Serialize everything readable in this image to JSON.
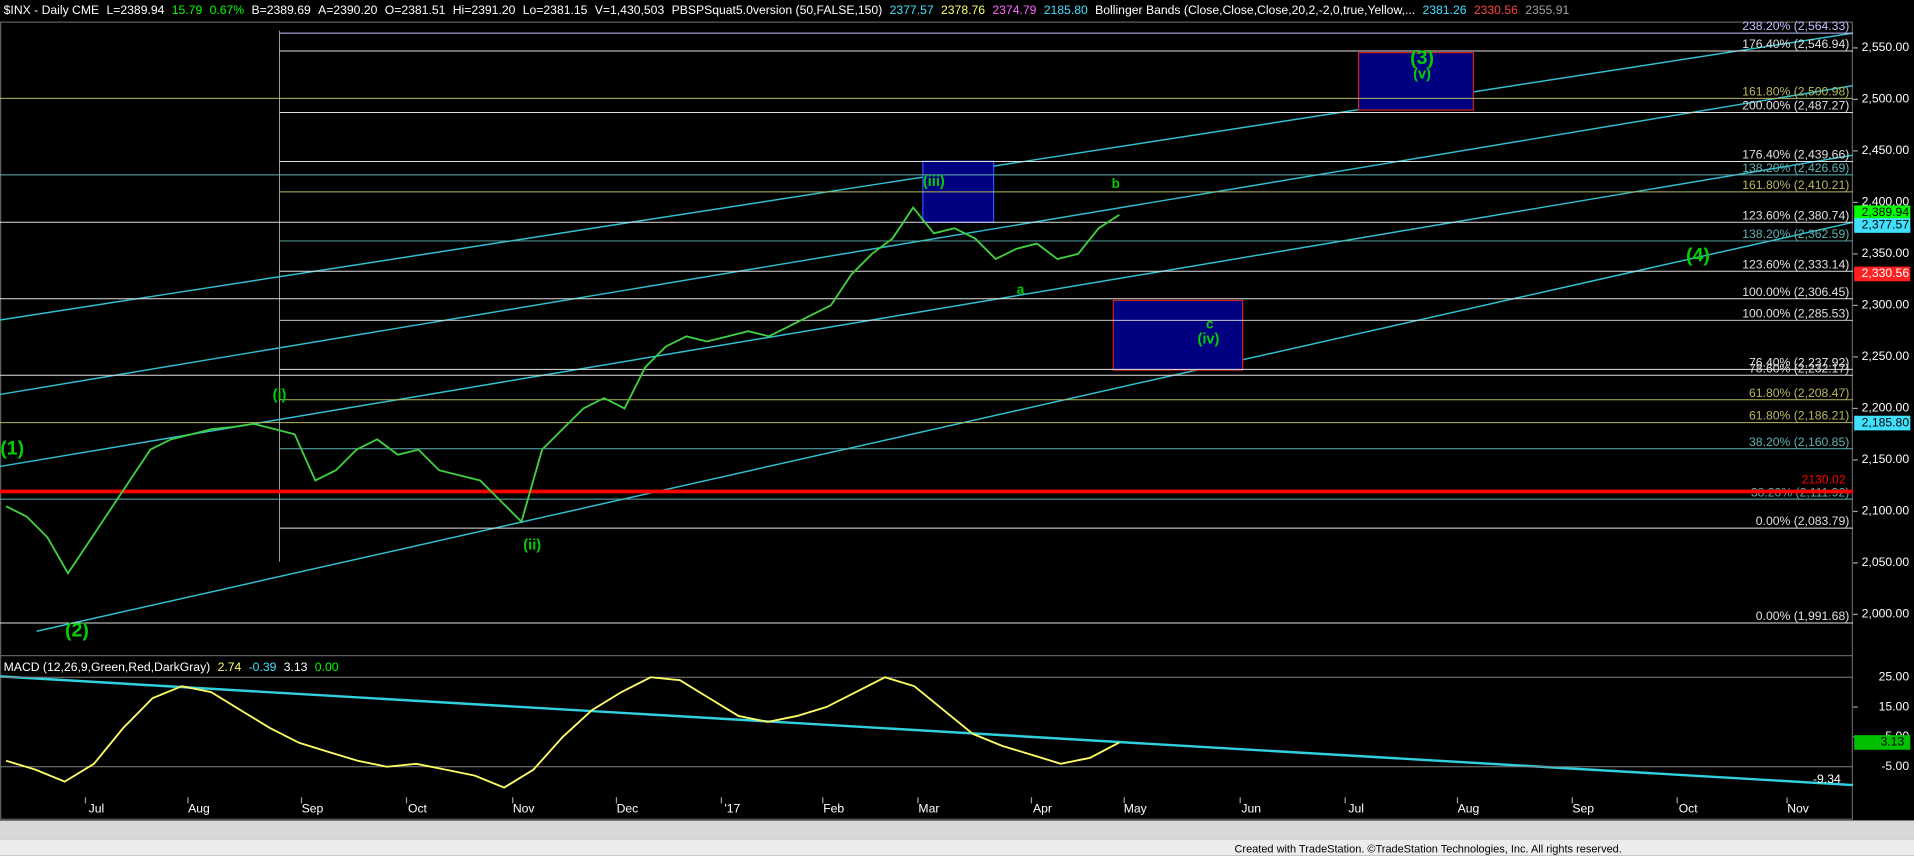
{
  "chart_data": {
    "type": "line",
    "header": [
      {
        "text": "$INX - Daily CME",
        "color": "#ffffff"
      },
      {
        "text": "L=2389.94",
        "color": "#ffffff"
      },
      {
        "text": "15.79",
        "color": "#00ff00"
      },
      {
        "text": "0.67%",
        "color": "#00ff00"
      },
      {
        "text": "B=2389.69",
        "color": "#ffffff"
      },
      {
        "text": "A=2390.20",
        "color": "#ffffff"
      },
      {
        "text": "O=2381.51",
        "color": "#ffffff"
      },
      {
        "text": "Hi=2391.20",
        "color": "#ffffff"
      },
      {
        "text": "Lo=2381.15",
        "color": "#ffffff"
      },
      {
        "text": "V=1,430,503",
        "color": "#ffffff"
      },
      {
        "text": "PBSPSquat5.0version (50,FALSE,150)",
        "color": "#ffffff"
      },
      {
        "text": "2377.57",
        "color": "#40e0ff"
      },
      {
        "text": "2378.76",
        "color": "#ffff66"
      },
      {
        "text": "2374.79",
        "color": "#ff66ff"
      },
      {
        "text": "2185.80",
        "color": "#40e0ff"
      },
      {
        "text": "Bollinger Bands (Close,Close,Close,20,2,-2,0,true,Yellow,...",
        "color": "#ffffff"
      },
      {
        "text": "2381.26",
        "color": "#40e0ff"
      },
      {
        "text": "2330.56",
        "color": "#ff4040"
      },
      {
        "text": "2355.91",
        "color": "#a0a0a0"
      }
    ],
    "ylim": [
      1960,
      2575
    ],
    "yticks": [
      {
        "value": 2000,
        "label": "2,000.00"
      },
      {
        "value": 2050,
        "label": "2,050.00"
      },
      {
        "value": 2100,
        "label": "2,100.00"
      },
      {
        "value": 2150,
        "label": "2,150.00"
      },
      {
        "value": 2200,
        "label": "2,200.00"
      },
      {
        "value": 2250,
        "label": "2,250.00"
      },
      {
        "value": 2300,
        "label": "2,300.00"
      },
      {
        "value": 2350,
        "label": "2,350.00"
      },
      {
        "value": 2400,
        "label": "2,400.00"
      },
      {
        "value": 2450,
        "label": "2,450.00"
      },
      {
        "value": 2500,
        "label": "2,500.00"
      },
      {
        "value": 2550,
        "label": "2,550.00"
      }
    ],
    "months": [
      "Jul",
      "Aug",
      "Sep",
      "Oct",
      "Nov",
      "Dec",
      "'17",
      "Feb",
      "Mar",
      "Apr",
      "May",
      "Jun",
      "Jul",
      "Aug",
      "Sep",
      "Oct",
      "Nov"
    ],
    "closes": {
      "color": "#40d040",
      "values": [
        2105,
        2095,
        2075,
        2040,
        2070,
        2100,
        2130,
        2160,
        2170,
        2175,
        2180,
        2182,
        2185,
        2180,
        2175,
        2130,
        2140,
        2160,
        2170,
        2155,
        2160,
        2140,
        2135,
        2130,
        2110,
        2090,
        2160,
        2180,
        2200,
        2210,
        2200,
        2240,
        2260,
        2270,
        2265,
        2270,
        2275,
        2270,
        2280,
        2290,
        2300,
        2330,
        2350,
        2365,
        2395,
        2370,
        2375,
        2365,
        2345,
        2355,
        2360,
        2345,
        2350,
        2375,
        2388
      ]
    },
    "fib_levels": [
      {
        "label": "238.20% (2,564.33)",
        "value": 2564.33,
        "color": "#c0c0ff"
      },
      {
        "label": "176.40% (2,546.94)",
        "value": 2546.94,
        "color": "#e0e0e0"
      },
      {
        "label": "161.80% (2,500.98)",
        "value": 2500.98,
        "color": "#b8b860"
      },
      {
        "label": "200.00% (2,487.27)",
        "value": 2487.27,
        "color": "#e0e0e0"
      },
      {
        "label": "176.40% (2,439.66)",
        "value": 2439.66,
        "color": "#e0e0e0"
      },
      {
        "label": "138.20% (2,426.69)",
        "value": 2426.69,
        "color": "#5fb3b3"
      },
      {
        "label": "161.80% (2,410.21)",
        "value": 2410.21,
        "color": "#b8b860"
      },
      {
        "label": "123.60% (2,380.74)",
        "value": 2380.74,
        "color": "#e0e0e0"
      },
      {
        "label": "138.20% (2,362.59)",
        "value": 2362.59,
        "color": "#5fb3b3"
      },
      {
        "label": "123.60% (2,333.14)",
        "value": 2333.14,
        "color": "#e0e0e0"
      },
      {
        "label": "100.00% (2,306.45)",
        "value": 2306.45,
        "color": "#e0e0e0"
      },
      {
        "label": "100.00% (2,285.53)",
        "value": 2285.53,
        "color": "#e0e0e0"
      },
      {
        "label": "76.40% (2,237.92)",
        "value": 2237.92,
        "color": "#e0e0e0"
      },
      {
        "label": "78.60% (2,232.17)",
        "value": 2232.17,
        "color": "#e0e0e0"
      },
      {
        "label": "61.80% (2,208.47)",
        "value": 2208.47,
        "color": "#b8b860"
      },
      {
        "label": "61.80% (2,186.21)",
        "value": 2186.21,
        "color": "#b8b860"
      },
      {
        "label": "38.20% (2,160.85)",
        "value": 2160.85,
        "color": "#5fb3b3"
      },
      {
        "label": "38.20% (2,111.92)",
        "value": 2111.92,
        "color": "#5fb3b3"
      },
      {
        "label": "0.00% (2,083.79)",
        "value": 2083.79,
        "color": "#e0e0e0"
      },
      {
        "label": "0.00% (1,991.68)",
        "value": 1991.68,
        "color": "#e0e0e0"
      }
    ],
    "support_line": {
      "value": 2130.02,
      "color": "#ff0000"
    },
    "price_tags": [
      {
        "value": 2389.94,
        "label": "2,389.94",
        "color": "#00ff00"
      },
      {
        "value": 2377.57,
        "label": "2,377.57",
        "color": "#40e0ff"
      },
      {
        "value": 2330.56,
        "label": "2,330.56",
        "color": "#ff2020"
      },
      {
        "value": 2185.8,
        "label": "2,185.80",
        "color": "#40e0ff"
      }
    ],
    "wave_labels": [
      "(1)",
      "(2)",
      "(i)",
      "(ii)",
      "(iii)",
      "a",
      "b",
      "c",
      "(iv)",
      "(3)",
      "(v)",
      "(4)"
    ],
    "macd": {
      "title": "MACD (12,26,9,Green,Red,DarkGray)",
      "readings": [
        {
          "text": "2.74",
          "color": "#ffff66"
        },
        {
          "text": "-0.39",
          "color": "#40e0ff"
        },
        {
          "text": "3.13",
          "color": "#ffffff"
        },
        {
          "text": "0.00",
          "color": "#00ff00"
        }
      ],
      "ylim": [
        -14,
        31
      ],
      "yticks": [
        {
          "value": 25,
          "label": "25.00"
        },
        {
          "value": 15,
          "label": "15.00"
        },
        {
          "value": 5,
          "label": "5.00"
        },
        {
          "value": -5,
          "label": "-5.00"
        }
      ],
      "color": "#ffff66",
      "values": [
        -3,
        -6,
        -10,
        -4,
        8,
        18,
        22,
        20,
        14,
        8,
        3,
        0,
        -3,
        -5,
        -4,
        -6,
        -8,
        -12,
        -6,
        5,
        14,
        20,
        25,
        24,
        18,
        12,
        10,
        12,
        15,
        20,
        25,
        22,
        14,
        6,
        2,
        -1,
        -4,
        -2,
        3.13
      ],
      "tag": 3.13,
      "tag_color": "#00c000",
      "trend_value": -9.34
    },
    "footer": "Created with TradeStation. ©TradeStation Technologies, Inc. All rights reserved."
  }
}
